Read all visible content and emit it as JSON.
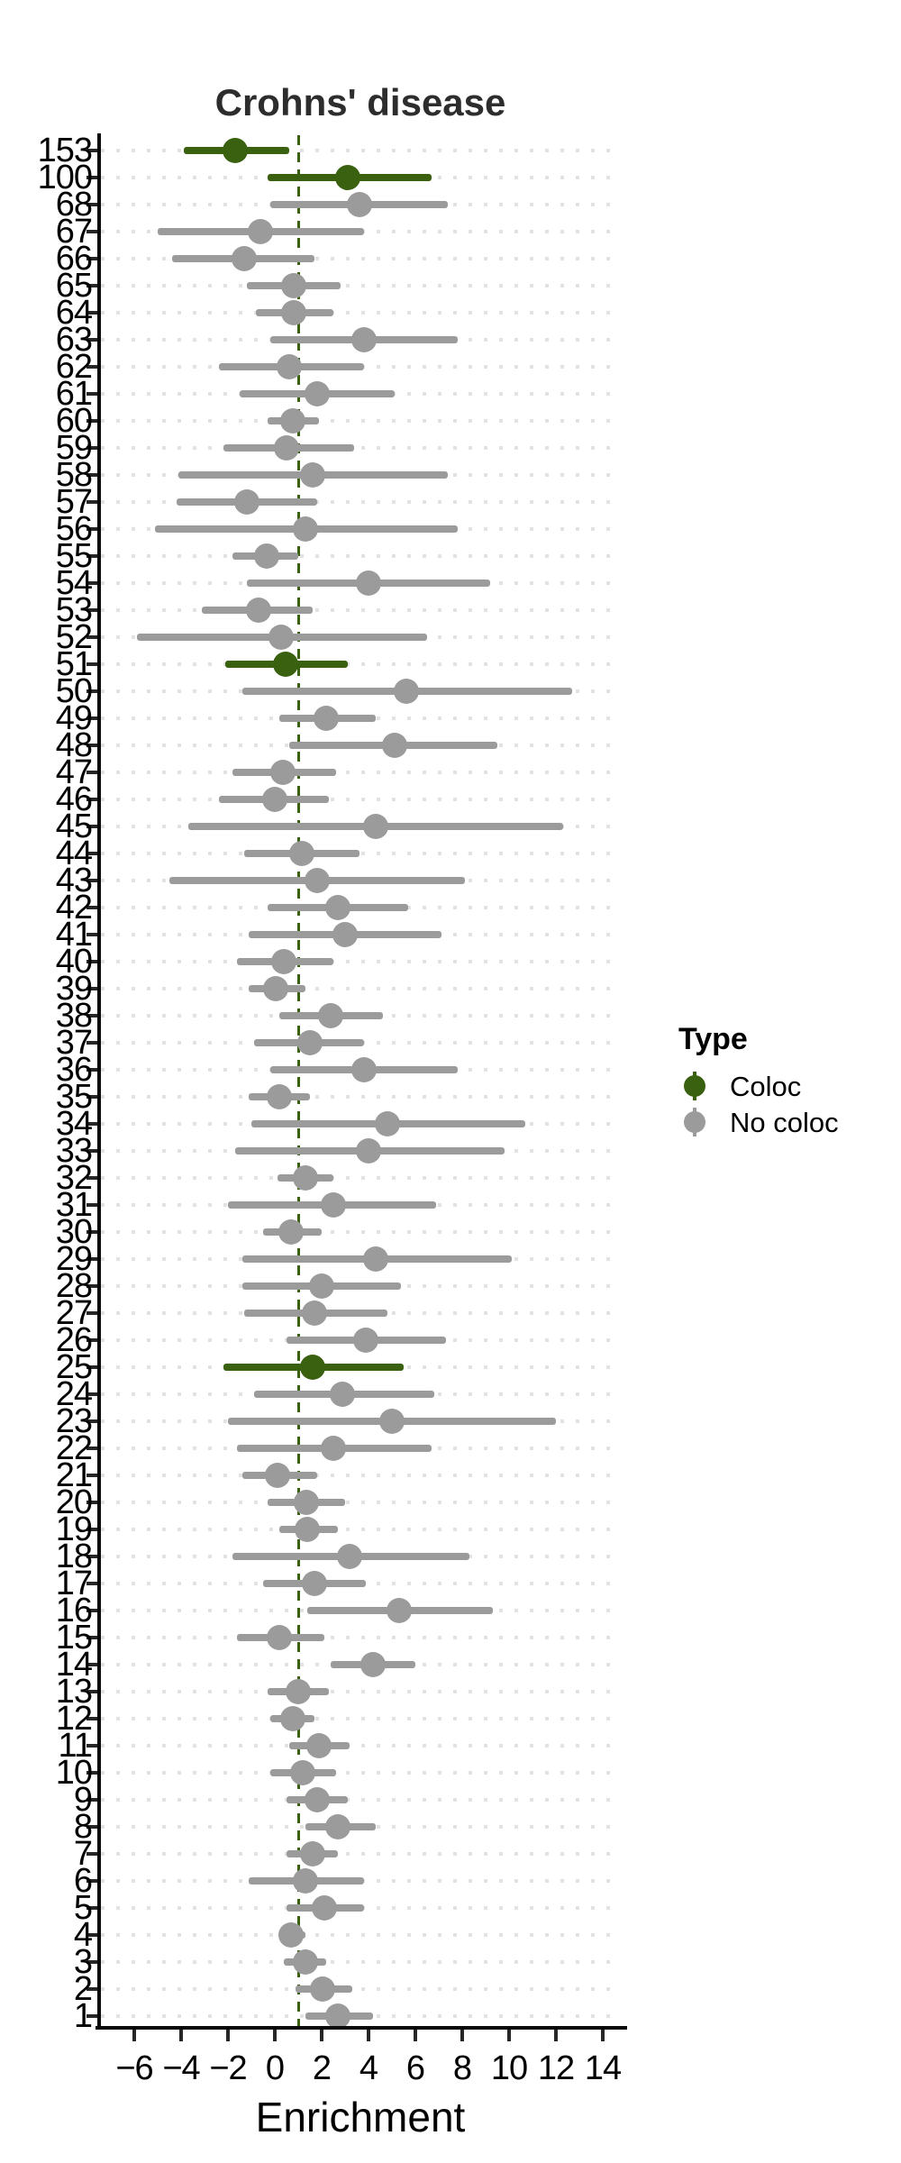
{
  "title": "Crohns' disease",
  "x_axis": {
    "label": "Enrichment",
    "tick_values": [
      -6,
      -4,
      -2,
      0,
      2,
      4,
      6,
      8,
      10,
      12,
      14
    ],
    "tick_labels": [
      "−6",
      "−4",
      "−2",
      "0",
      "2",
      "4",
      "6",
      "8",
      "10",
      "12",
      "14"
    ]
  },
  "legend": {
    "title": "Type",
    "items": [
      {
        "label": "Coloc",
        "type": "Coloc"
      },
      {
        "label": "No coloc",
        "type": "No coloc"
      }
    ]
  },
  "colors": {
    "coloc": "#3a610f",
    "no_coloc": "#9b9b9b",
    "reference_line": "#3a610f",
    "grid_dots": "#e2e2e2",
    "axis": "#0a0a0a",
    "title_text": "#2d2d2d"
  },
  "chart_data": {
    "type": "scatter",
    "subtype": "forest_pointrange",
    "title": "Crohns' disease",
    "xlabel": "Enrichment",
    "ylabel": "",
    "xlim": [
      -7.5,
      14.8
    ],
    "x_ticks": [
      -6,
      -4,
      -2,
      0,
      2,
      4,
      6,
      8,
      10,
      12,
      14
    ],
    "reference_x": 1,
    "grid": "dotted-horizontal",
    "legend_position": "right",
    "series_legend": [
      "Coloc",
      "No coloc"
    ],
    "rows": [
      {
        "label": "153",
        "estimate": -1.7,
        "ci_low": -3.9,
        "ci_high": 0.6,
        "type": "Coloc"
      },
      {
        "label": "100",
        "estimate": 3.1,
        "ci_low": -0.3,
        "ci_high": 6.7,
        "type": "Coloc"
      },
      {
        "label": "68",
        "estimate": 3.6,
        "ci_low": -0.2,
        "ci_high": 7.4,
        "type": "No coloc"
      },
      {
        "label": "67",
        "estimate": -0.6,
        "ci_low": -5.0,
        "ci_high": 3.8,
        "type": "No coloc"
      },
      {
        "label": "66",
        "estimate": -1.3,
        "ci_low": -4.4,
        "ci_high": 1.7,
        "type": "No coloc"
      },
      {
        "label": "65",
        "estimate": 0.8,
        "ci_low": -1.2,
        "ci_high": 2.8,
        "type": "No coloc"
      },
      {
        "label": "64",
        "estimate": 0.8,
        "ci_low": -0.8,
        "ci_high": 2.5,
        "type": "No coloc"
      },
      {
        "label": "63",
        "estimate": 3.8,
        "ci_low": -0.2,
        "ci_high": 7.8,
        "type": "No coloc"
      },
      {
        "label": "62",
        "estimate": 0.6,
        "ci_low": -2.4,
        "ci_high": 3.8,
        "type": "No coloc"
      },
      {
        "label": "61",
        "estimate": 1.8,
        "ci_low": -1.5,
        "ci_high": 5.1,
        "type": "No coloc"
      },
      {
        "label": "60",
        "estimate": 0.75,
        "ci_low": -0.3,
        "ci_high": 1.9,
        "type": "No coloc"
      },
      {
        "label": "59",
        "estimate": 0.5,
        "ci_low": -2.2,
        "ci_high": 3.4,
        "type": "No coloc"
      },
      {
        "label": "58",
        "estimate": 1.6,
        "ci_low": -4.1,
        "ci_high": 7.4,
        "type": "No coloc"
      },
      {
        "label": "57",
        "estimate": -1.2,
        "ci_low": -4.2,
        "ci_high": 1.8,
        "type": "No coloc"
      },
      {
        "label": "56",
        "estimate": 1.3,
        "ci_low": -5.1,
        "ci_high": 7.8,
        "type": "No coloc"
      },
      {
        "label": "55",
        "estimate": -0.35,
        "ci_low": -1.8,
        "ci_high": 1.0,
        "type": "No coloc"
      },
      {
        "label": "54",
        "estimate": 4.0,
        "ci_low": -1.2,
        "ci_high": 9.2,
        "type": "No coloc"
      },
      {
        "label": "53",
        "estimate": -0.7,
        "ci_low": -3.1,
        "ci_high": 1.6,
        "type": "No coloc"
      },
      {
        "label": "52",
        "estimate": 0.25,
        "ci_low": -5.9,
        "ci_high": 6.5,
        "type": "No coloc"
      },
      {
        "label": "51",
        "estimate": 0.45,
        "ci_low": -2.1,
        "ci_high": 3.1,
        "type": "Coloc"
      },
      {
        "label": "50",
        "estimate": 5.6,
        "ci_low": -1.4,
        "ci_high": 12.7,
        "type": "No coloc"
      },
      {
        "label": "49",
        "estimate": 2.2,
        "ci_low": 0.2,
        "ci_high": 4.3,
        "type": "No coloc"
      },
      {
        "label": "48",
        "estimate": 5.1,
        "ci_low": 0.6,
        "ci_high": 9.5,
        "type": "No coloc"
      },
      {
        "label": "47",
        "estimate": 0.35,
        "ci_low": -1.8,
        "ci_high": 2.6,
        "type": "No coloc"
      },
      {
        "label": "46",
        "estimate": 0.0,
        "ci_low": -2.4,
        "ci_high": 2.3,
        "type": "No coloc"
      },
      {
        "label": "45",
        "estimate": 4.3,
        "ci_low": -3.7,
        "ci_high": 12.3,
        "type": "No coloc"
      },
      {
        "label": "44",
        "estimate": 1.15,
        "ci_low": -1.3,
        "ci_high": 3.6,
        "type": "No coloc"
      },
      {
        "label": "43",
        "estimate": 1.8,
        "ci_low": -4.5,
        "ci_high": 8.1,
        "type": "No coloc"
      },
      {
        "label": "42",
        "estimate": 2.7,
        "ci_low": -0.3,
        "ci_high": 5.7,
        "type": "No coloc"
      },
      {
        "label": "41",
        "estimate": 3.0,
        "ci_low": -1.1,
        "ci_high": 7.1,
        "type": "No coloc"
      },
      {
        "label": "40",
        "estimate": 0.4,
        "ci_low": -1.6,
        "ci_high": 2.5,
        "type": "No coloc"
      },
      {
        "label": "39",
        "estimate": 0.05,
        "ci_low": -1.1,
        "ci_high": 1.3,
        "type": "No coloc"
      },
      {
        "label": "38",
        "estimate": 2.4,
        "ci_low": 0.2,
        "ci_high": 4.6,
        "type": "No coloc"
      },
      {
        "label": "37",
        "estimate": 1.5,
        "ci_low": -0.9,
        "ci_high": 3.8,
        "type": "No coloc"
      },
      {
        "label": "36",
        "estimate": 3.8,
        "ci_low": -0.2,
        "ci_high": 7.8,
        "type": "No coloc"
      },
      {
        "label": "35",
        "estimate": 0.2,
        "ci_low": -1.1,
        "ci_high": 1.5,
        "type": "No coloc"
      },
      {
        "label": "34",
        "estimate": 4.8,
        "ci_low": -1.0,
        "ci_high": 10.7,
        "type": "No coloc"
      },
      {
        "label": "33",
        "estimate": 4.0,
        "ci_low": -1.7,
        "ci_high": 9.8,
        "type": "No coloc"
      },
      {
        "label": "32",
        "estimate": 1.3,
        "ci_low": 0.1,
        "ci_high": 2.5,
        "type": "No coloc"
      },
      {
        "label": "31",
        "estimate": 2.5,
        "ci_low": -2.0,
        "ci_high": 6.9,
        "type": "No coloc"
      },
      {
        "label": "30",
        "estimate": 0.7,
        "ci_low": -0.5,
        "ci_high": 2.0,
        "type": "No coloc"
      },
      {
        "label": "29",
        "estimate": 4.3,
        "ci_low": -1.4,
        "ci_high": 10.1,
        "type": "No coloc"
      },
      {
        "label": "28",
        "estimate": 2.0,
        "ci_low": -1.4,
        "ci_high": 5.4,
        "type": "No coloc"
      },
      {
        "label": "27",
        "estimate": 1.7,
        "ci_low": -1.3,
        "ci_high": 4.8,
        "type": "No coloc"
      },
      {
        "label": "26",
        "estimate": 3.9,
        "ci_low": 0.5,
        "ci_high": 7.3,
        "type": "No coloc"
      },
      {
        "label": "25",
        "estimate": 1.6,
        "ci_low": -2.2,
        "ci_high": 5.5,
        "type": "Coloc"
      },
      {
        "label": "24",
        "estimate": 2.9,
        "ci_low": -0.9,
        "ci_high": 6.8,
        "type": "No coloc"
      },
      {
        "label": "23",
        "estimate": 5.0,
        "ci_low": -2.0,
        "ci_high": 12.0,
        "type": "No coloc"
      },
      {
        "label": "22",
        "estimate": 2.5,
        "ci_low": -1.6,
        "ci_high": 6.7,
        "type": "No coloc"
      },
      {
        "label": "21",
        "estimate": 0.1,
        "ci_low": -1.4,
        "ci_high": 1.8,
        "type": "No coloc"
      },
      {
        "label": "20",
        "estimate": 1.35,
        "ci_low": -0.3,
        "ci_high": 3.0,
        "type": "No coloc"
      },
      {
        "label": "19",
        "estimate": 1.4,
        "ci_low": 0.2,
        "ci_high": 2.7,
        "type": "No coloc"
      },
      {
        "label": "18",
        "estimate": 3.2,
        "ci_low": -1.8,
        "ci_high": 8.3,
        "type": "No coloc"
      },
      {
        "label": "17",
        "estimate": 1.7,
        "ci_low": -0.5,
        "ci_high": 3.9,
        "type": "No coloc"
      },
      {
        "label": "16",
        "estimate": 5.3,
        "ci_low": 1.4,
        "ci_high": 9.3,
        "type": "No coloc"
      },
      {
        "label": "15",
        "estimate": 0.2,
        "ci_low": -1.6,
        "ci_high": 2.1,
        "type": "No coloc"
      },
      {
        "label": "14",
        "estimate": 4.2,
        "ci_low": 2.4,
        "ci_high": 6.0,
        "type": "No coloc"
      },
      {
        "label": "13",
        "estimate": 1.0,
        "ci_low": -0.3,
        "ci_high": 2.3,
        "type": "No coloc"
      },
      {
        "label": "12",
        "estimate": 0.75,
        "ci_low": -0.2,
        "ci_high": 1.7,
        "type": "No coloc"
      },
      {
        "label": "11",
        "estimate": 1.9,
        "ci_low": 0.6,
        "ci_high": 3.2,
        "type": "No coloc"
      },
      {
        "label": "10",
        "estimate": 1.2,
        "ci_low": -0.2,
        "ci_high": 2.6,
        "type": "No coloc"
      },
      {
        "label": "9",
        "estimate": 1.8,
        "ci_low": 0.5,
        "ci_high": 3.1,
        "type": "No coloc"
      },
      {
        "label": "8",
        "estimate": 2.7,
        "ci_low": 1.3,
        "ci_high": 4.3,
        "type": "No coloc"
      },
      {
        "label": "7",
        "estimate": 1.6,
        "ci_low": 0.5,
        "ci_high": 2.7,
        "type": "No coloc"
      },
      {
        "label": "6",
        "estimate": 1.3,
        "ci_low": -1.1,
        "ci_high": 3.8,
        "type": "No coloc"
      },
      {
        "label": "5",
        "estimate": 2.1,
        "ci_low": 0.5,
        "ci_high": 3.8,
        "type": "No coloc"
      },
      {
        "label": "4",
        "estimate": 0.7,
        "ci_low": 0.2,
        "ci_high": 1.3,
        "type": "No coloc"
      },
      {
        "label": "3",
        "estimate": 1.3,
        "ci_low": 0.4,
        "ci_high": 2.2,
        "type": "No coloc"
      },
      {
        "label": "2",
        "estimate": 2.05,
        "ci_low": 0.9,
        "ci_high": 3.3,
        "type": "No coloc"
      },
      {
        "label": "1",
        "estimate": 2.7,
        "ci_low": 1.3,
        "ci_high": 4.2,
        "type": "No coloc"
      }
    ]
  }
}
